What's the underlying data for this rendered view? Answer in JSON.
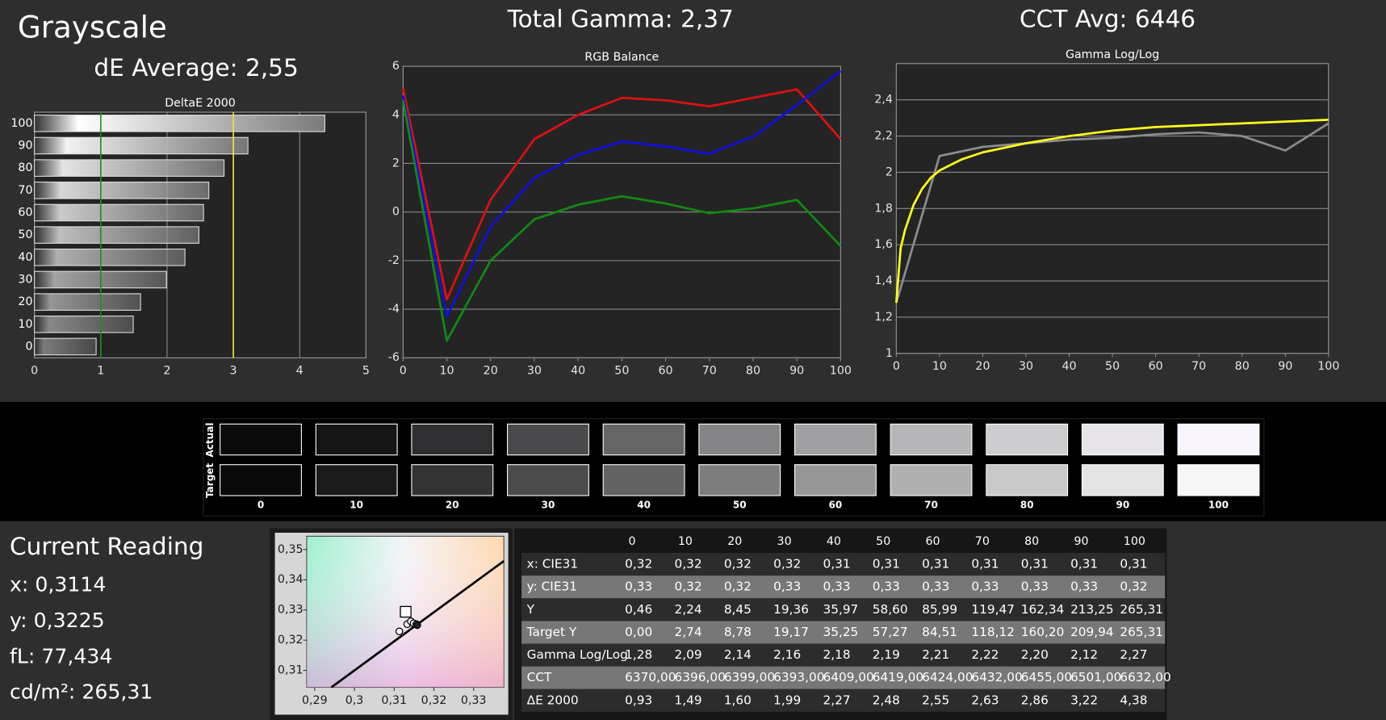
{
  "header": {
    "title": "Grayscale",
    "de_average": "dE Average: 2,55",
    "total_gamma": "Total Gamma: 2,37",
    "cct_avg": "CCT Avg: 6446"
  },
  "chart_data": [
    {
      "type": "bar",
      "orientation": "horizontal",
      "title": "DeltaE 2000",
      "categories": [
        "100",
        "90",
        "80",
        "70",
        "60",
        "50",
        "40",
        "30",
        "20",
        "10",
        "0"
      ],
      "values": [
        4.38,
        3.22,
        2.86,
        2.63,
        2.55,
        2.48,
        2.27,
        1.99,
        1.6,
        1.49,
        0.93
      ],
      "xlim": [
        0,
        5
      ],
      "xticks": [
        0,
        1,
        2,
        3,
        4,
        5
      ],
      "grid": "vertical",
      "reference_lines": [
        {
          "value": 1,
          "color": "#1f8f1f"
        },
        {
          "value": 3,
          "color": "#e8e830"
        }
      ]
    },
    {
      "type": "line",
      "title": "RGB Balance",
      "x": [
        0,
        10,
        20,
        30,
        40,
        50,
        60,
        70,
        80,
        90,
        100
      ],
      "series": [
        {
          "color": "#e01010",
          "values": [
            5.1,
            -3.6,
            0.5,
            3.0,
            4.0,
            4.7,
            4.6,
            4.35,
            4.7,
            5.05,
            3.0
          ]
        },
        {
          "color": "#1010e0",
          "values": [
            4.8,
            -4.3,
            -0.6,
            1.4,
            2.35,
            2.9,
            2.7,
            2.4,
            3.1,
            4.4,
            5.8
          ]
        },
        {
          "color": "#108a10",
          "values": [
            4.6,
            -5.3,
            -2.0,
            -0.3,
            0.3,
            0.65,
            0.35,
            -0.05,
            0.15,
            0.5,
            -1.4
          ]
        }
      ],
      "xlim": [
        0,
        100
      ],
      "xticks": [
        0,
        10,
        20,
        30,
        40,
        50,
        60,
        70,
        80,
        90,
        100
      ],
      "ylim": [
        -6,
        6
      ],
      "yticks": [
        -6,
        -4,
        -2,
        0,
        2,
        4,
        6
      ],
      "grid": "horizontal"
    },
    {
      "type": "line",
      "title": "Gamma Log/Log",
      "series": [
        {
          "color": "#8c8c8c",
          "x": [
            0,
            10,
            20,
            30,
            40,
            50,
            60,
            70,
            80,
            90,
            100
          ],
          "values": [
            1.28,
            2.09,
            2.14,
            2.16,
            2.18,
            2.19,
            2.21,
            2.22,
            2.2,
            2.12,
            2.27
          ]
        },
        {
          "color": "#ffff1a",
          "x": [
            0,
            1,
            2,
            4,
            6,
            8,
            10,
            15,
            20,
            30,
            40,
            50,
            60,
            70,
            80,
            90,
            100
          ],
          "values": [
            1.28,
            1.58,
            1.68,
            1.82,
            1.91,
            1.97,
            2.01,
            2.07,
            2.11,
            2.16,
            2.2,
            2.23,
            2.25,
            2.26,
            2.27,
            2.28,
            2.29
          ]
        }
      ],
      "xlim": [
        0,
        100
      ],
      "xticks": [
        0,
        10,
        20,
        30,
        40,
        50,
        60,
        70,
        80,
        90,
        100
      ],
      "ylim": [
        1,
        2.6
      ],
      "yticks": [
        1,
        {
          "value": 1.2,
          "label": "1,2"
        },
        {
          "value": 1.4,
          "label": "1,4"
        },
        {
          "value": 1.6,
          "label": "1,6"
        },
        {
          "value": 1.8,
          "label": "1,8"
        },
        2,
        {
          "value": 2.2,
          "label": "2,2"
        },
        {
          "value": 2.4,
          "label": "2,4"
        }
      ],
      "grid": "horizontal"
    },
    {
      "type": "scatter",
      "series": [
        {
          "marker": "line",
          "color": "#000000",
          "x": [
            0.2942,
            0.3376
          ],
          "values": [
            0.3044,
            0.3462
          ]
        },
        {
          "marker": "square",
          "color": "#000000",
          "x": [
            0.3129
          ],
          "values": [
            0.3294
          ]
        },
        {
          "marker": "circle",
          "color": "#000000",
          "x": [
            0.3113,
            0.3133,
            0.3142,
            0.3149,
            0.3156,
            0.3158
          ],
          "values": [
            0.3229,
            0.3253,
            0.3262,
            0.3256,
            0.3253,
            0.325
          ]
        }
      ],
      "xlim": [
        0.288,
        0.3376
      ],
      "xticks": [
        {
          "value": 0.29,
          "label": "0,29"
        },
        {
          "value": 0.3,
          "label": "0,3"
        },
        {
          "value": 0.31,
          "label": "0,31"
        },
        {
          "value": 0.32,
          "label": "0,32"
        },
        {
          "value": 0.33,
          "label": "0,33"
        }
      ],
      "ylim": [
        0.3044,
        0.3544
      ],
      "yticks": [
        {
          "value": 0.31,
          "label": "0,31"
        },
        {
          "value": 0.32,
          "label": "0,32"
        },
        {
          "value": 0.33,
          "label": "0,33"
        },
        {
          "value": 0.34,
          "label": "0,34"
        },
        {
          "value": 0.35,
          "label": "0,35"
        }
      ],
      "grid": "none"
    }
  ],
  "swatches": {
    "row_labels": [
      "Actual",
      "Target"
    ],
    "labels": [
      "0",
      "10",
      "20",
      "30",
      "40",
      "50",
      "60",
      "70",
      "80",
      "90",
      "100"
    ],
    "actual_colors": [
      "#0b0b0b",
      "#161516",
      "#2f2e30",
      "#4a4a4c",
      "#656566",
      "#848385",
      "#a09fa1",
      "#b6b5b7",
      "#cdcccf",
      "#e6e4e8",
      "#f8f6fc"
    ],
    "target_colors": [
      "#0a0a0a",
      "#1a1a1a",
      "#333333",
      "#4b4b4b",
      "#636363",
      "#7c7c7c",
      "#969696",
      "#b0b0b0",
      "#c9c9c9",
      "#e3e3e3",
      "#f6f6f6"
    ]
  },
  "current_reading": {
    "title": "Current Reading",
    "lines": [
      "x: 0,3114",
      "y: 0,3225",
      "fL: 77,434",
      "cd/m²: 265,31"
    ]
  },
  "table": {
    "columns": [
      "0",
      "10",
      "20",
      "30",
      "40",
      "50",
      "60",
      "70",
      "80",
      "90",
      "100"
    ],
    "rows": [
      {
        "label": "x: CIE31",
        "cells": [
          "0,32",
          "0,32",
          "0,32",
          "0,32",
          "0,31",
          "0,31",
          "0,31",
          "0,31",
          "0,31",
          "0,31",
          "0,31"
        ]
      },
      {
        "label": "y: CIE31",
        "cells": [
          "0,33",
          "0,32",
          "0,32",
          "0,33",
          "0,33",
          "0,33",
          "0,33",
          "0,33",
          "0,33",
          "0,33",
          "0,32"
        ]
      },
      {
        "label": "Y",
        "cells": [
          "0,46",
          "2,24",
          "8,45",
          "19,36",
          "35,97",
          "58,60",
          "85,99",
          "119,47",
          "162,34",
          "213,25",
          "265,31"
        ]
      },
      {
        "label": "Target Y",
        "cells": [
          "0,00",
          "2,74",
          "8,78",
          "19,17",
          "35,25",
          "57,27",
          "84,51",
          "118,12",
          "160,20",
          "209,94",
          "265,31"
        ]
      },
      {
        "label": "Gamma Log/Log",
        "cells": [
          "1,28",
          "2,09",
          "2,14",
          "2,16",
          "2,18",
          "2,19",
          "2,21",
          "2,22",
          "2,20",
          "2,12",
          "2,27"
        ]
      },
      {
        "label": "CCT",
        "cells": [
          "6370,00",
          "6396,00",
          "6399,00",
          "6393,00",
          "6409,00",
          "6419,00",
          "6424,00",
          "6432,00",
          "6455,00",
          "6501,00",
          "6632,00"
        ]
      },
      {
        "label": "ΔE 2000",
        "cells": [
          "0,93",
          "1,49",
          "1,60",
          "1,99",
          "2,27",
          "2,48",
          "2,55",
          "2,63",
          "2,86",
          "3,22",
          "4,38"
        ]
      }
    ]
  }
}
